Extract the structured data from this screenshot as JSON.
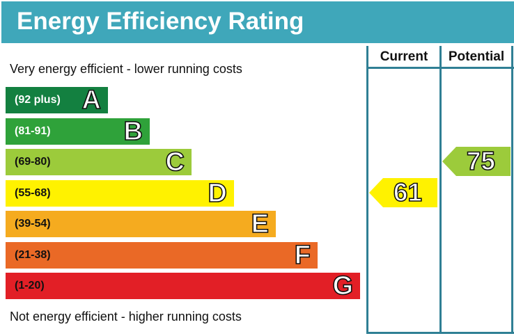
{
  "title": "Energy Efficiency Rating",
  "columns": {
    "current": "Current",
    "potential": "Potential"
  },
  "top_note": "Very energy efficient - lower running costs",
  "bottom_note": "Not energy efficient - higher running costs",
  "chart_data": {
    "type": "bar",
    "bands": [
      {
        "letter": "A",
        "range": "(92 plus)",
        "min": 92,
        "max": 100,
        "color": "#138040",
        "text_color": "#ffffff"
      },
      {
        "letter": "B",
        "range": "(81-91)",
        "min": 81,
        "max": 91,
        "color": "#2fa23a",
        "text_color": "#ffffff"
      },
      {
        "letter": "C",
        "range": "(69-80)",
        "min": 69,
        "max": 80,
        "color": "#9ccb3b",
        "text_color": "#111111"
      },
      {
        "letter": "D",
        "range": "(55-68)",
        "min": 55,
        "max": 68,
        "color": "#fff200",
        "text_color": "#111111"
      },
      {
        "letter": "E",
        "range": "(39-54)",
        "min": 39,
        "max": 54,
        "color": "#f5ab1f",
        "text_color": "#111111"
      },
      {
        "letter": "F",
        "range": "(21-38)",
        "min": 21,
        "max": 38,
        "color": "#ea6926",
        "text_color": "#111111"
      },
      {
        "letter": "G",
        "range": "(1-20)",
        "min": 1,
        "max": 20,
        "color": "#e21f26",
        "text_color": "#111111"
      }
    ],
    "current": {
      "value": "61",
      "band": "D",
      "color": "#fff200"
    },
    "potential": {
      "value": "75",
      "band": "C",
      "color": "#9ccb3b"
    }
  }
}
